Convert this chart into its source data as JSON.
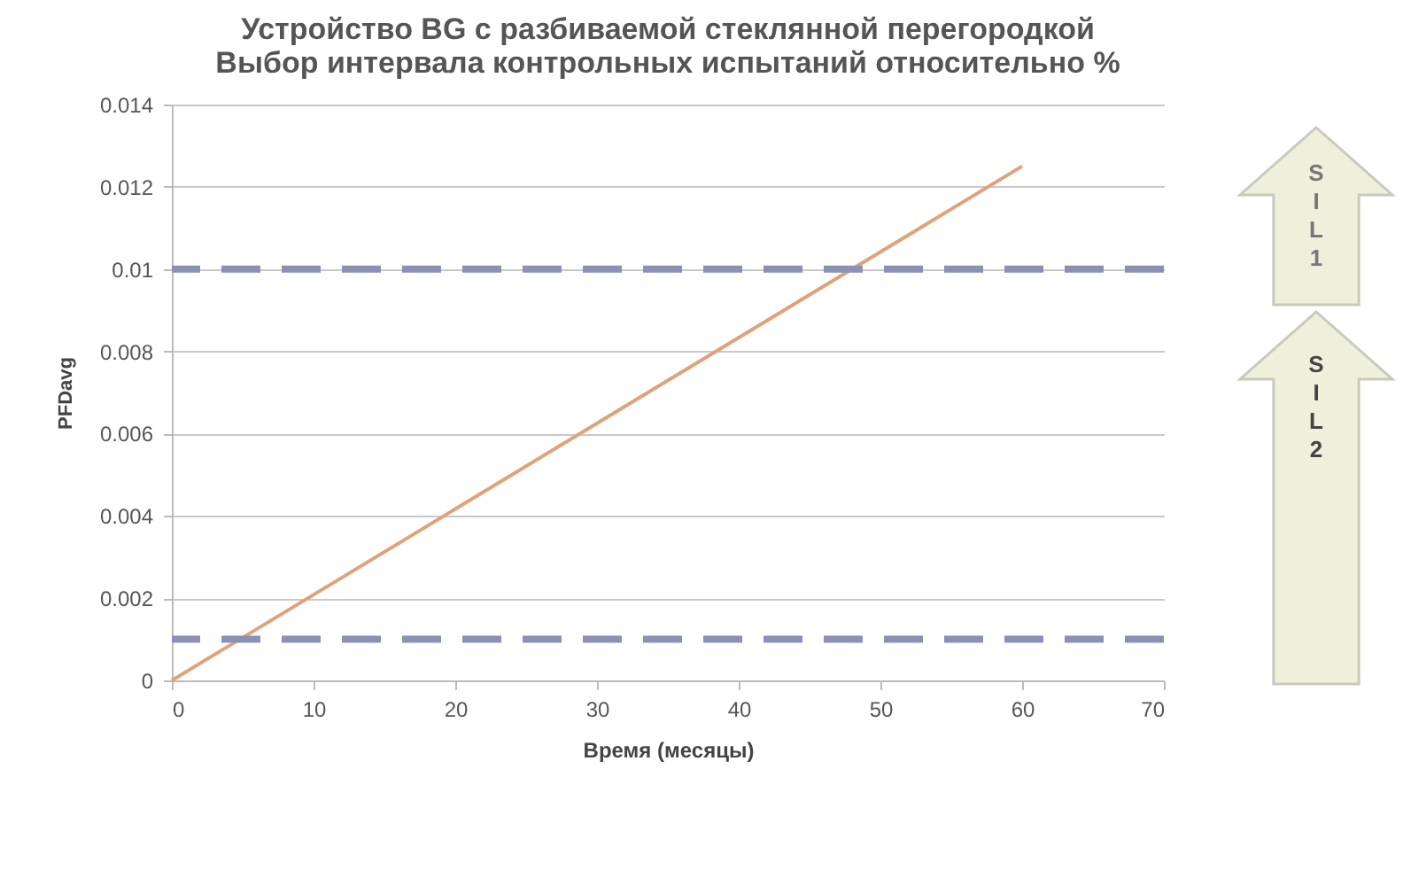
{
  "chart_data": {
    "type": "line",
    "title": [
      "Устройство BG с разбиваемой стеклянной перегородкой",
      "Выбор интервала контрольных испытаний относительно %"
    ],
    "xlabel": "Время (месяцы)",
    "ylabel": "PFDavg",
    "x": [
      0,
      60
    ],
    "series": [
      {
        "color": "#e0a27a",
        "values": [
          0,
          0.0125
        ]
      }
    ],
    "xlim": [
      0,
      70
    ],
    "xticks": [
      0,
      10,
      20,
      30,
      40,
      50,
      60,
      70
    ],
    "ylim": [
      0,
      0.014
    ],
    "yticks": [
      0,
      0.002,
      0.004,
      0.006,
      0.008,
      0.01,
      0.012,
      0.014
    ],
    "grid": "y",
    "ref_lines": [
      {
        "axis": "y",
        "value": 0.01,
        "color": "#8c90b4",
        "line_style": "dashed"
      },
      {
        "axis": "y",
        "value": 0.001,
        "color": "#8c90b4",
        "line_style": "dashed"
      }
    ],
    "annotations": [
      "SIL 1",
      "SIL 2"
    ]
  }
}
